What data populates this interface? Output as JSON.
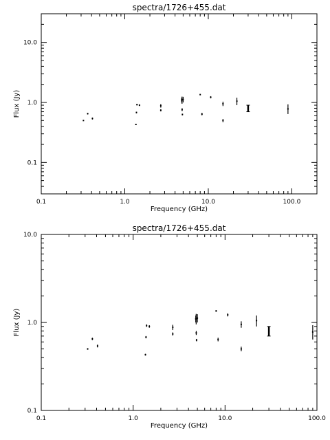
{
  "chart_data": [
    {
      "type": "scatter",
      "title": "spectra/1726+455.dat",
      "xlabel": "Frequency (GHz)",
      "ylabel": "Flux (Jy)",
      "xscale": "log",
      "yscale": "log",
      "xlim": [
        0.1,
        200
      ],
      "ylim": [
        0.03,
        30
      ],
      "xticks": [
        {
          "value": 0.1,
          "label": "0.1"
        },
        {
          "value": 1,
          "label": "1.0"
        },
        {
          "value": 10,
          "label": "10.0"
        },
        {
          "value": 100,
          "label": "100.0"
        }
      ],
      "yticks": [
        {
          "value": 0.1,
          "label": "0.1"
        },
        {
          "value": 1,
          "label": "1.0"
        },
        {
          "value": 10,
          "label": "10.0"
        }
      ],
      "points": [
        {
          "x": 0.32,
          "y": 0.5,
          "lo": 0.49,
          "hi": 0.51
        },
        {
          "x": 0.36,
          "y": 0.65,
          "lo": 0.63,
          "hi": 0.67
        },
        {
          "x": 0.41,
          "y": 0.54,
          "lo": 0.52,
          "hi": 0.56
        },
        {
          "x": 1.36,
          "y": 0.43,
          "lo": 0.42,
          "hi": 0.44
        },
        {
          "x": 1.38,
          "y": 0.68,
          "lo": 0.66,
          "hi": 0.7
        },
        {
          "x": 1.4,
          "y": 0.92,
          "lo": 0.89,
          "hi": 0.95
        },
        {
          "x": 1.5,
          "y": 0.9,
          "lo": 0.87,
          "hi": 0.93
        },
        {
          "x": 2.7,
          "y": 0.74,
          "lo": 0.71,
          "hi": 0.77
        },
        {
          "x": 2.7,
          "y": 0.88,
          "lo": 0.82,
          "hi": 0.94
        },
        {
          "x": 4.8,
          "y": 1.1,
          "lo": 1.0,
          "hi": 1.2
        },
        {
          "x": 4.85,
          "y": 1.1,
          "lo": 0.95,
          "hi": 1.25
        },
        {
          "x": 4.86,
          "y": 0.76,
          "lo": 0.72,
          "hi": 0.8
        },
        {
          "x": 4.9,
          "y": 0.63,
          "lo": 0.61,
          "hi": 0.65
        },
        {
          "x": 5.0,
          "y": 1.12,
          "lo": 1.0,
          "hi": 1.24
        },
        {
          "x": 8.0,
          "y": 1.35,
          "lo": 1.32,
          "hi": 1.38
        },
        {
          "x": 8.4,
          "y": 0.64,
          "lo": 0.61,
          "hi": 0.67
        },
        {
          "x": 10.7,
          "y": 1.22,
          "lo": 1.17,
          "hi": 1.27
        },
        {
          "x": 15.0,
          "y": 0.5,
          "lo": 0.47,
          "hi": 0.53
        },
        {
          "x": 15.0,
          "y": 0.95,
          "lo": 0.87,
          "hi": 1.03
        },
        {
          "x": 22.0,
          "y": 1.05,
          "lo": 0.9,
          "hi": 1.2
        },
        {
          "x": 30.0,
          "y": 0.8,
          "lo": 0.7,
          "hi": 0.9,
          "cap": true
        },
        {
          "x": 90.0,
          "y": 0.78,
          "lo": 0.64,
          "hi": 0.93
        }
      ]
    },
    {
      "type": "scatter",
      "title": "spectra/1726+455.dat",
      "xlabel": "Frequency (GHz)",
      "ylabel": "Flux (Jy)",
      "xscale": "log",
      "yscale": "log",
      "xlim": [
        0.1,
        100
      ],
      "ylim": [
        0.1,
        10
      ],
      "xticks": [
        {
          "value": 0.1,
          "label": "0.1"
        },
        {
          "value": 1,
          "label": "1.0"
        },
        {
          "value": 10,
          "label": "10.0"
        },
        {
          "value": 100,
          "label": "100.0"
        }
      ],
      "yticks": [
        {
          "value": 0.1,
          "label": "0.1"
        },
        {
          "value": 1,
          "label": "1.0"
        },
        {
          "value": 10,
          "label": "10.0"
        }
      ],
      "points": [
        {
          "x": 0.32,
          "y": 0.5,
          "lo": 0.49,
          "hi": 0.51
        },
        {
          "x": 0.36,
          "y": 0.65,
          "lo": 0.63,
          "hi": 0.67
        },
        {
          "x": 0.41,
          "y": 0.54,
          "lo": 0.52,
          "hi": 0.56
        },
        {
          "x": 1.36,
          "y": 0.43,
          "lo": 0.42,
          "hi": 0.44
        },
        {
          "x": 1.38,
          "y": 0.68,
          "lo": 0.66,
          "hi": 0.7
        },
        {
          "x": 1.4,
          "y": 0.92,
          "lo": 0.89,
          "hi": 0.95
        },
        {
          "x": 1.5,
          "y": 0.9,
          "lo": 0.87,
          "hi": 0.93
        },
        {
          "x": 2.7,
          "y": 0.74,
          "lo": 0.71,
          "hi": 0.77
        },
        {
          "x": 2.7,
          "y": 0.88,
          "lo": 0.82,
          "hi": 0.94
        },
        {
          "x": 4.8,
          "y": 1.1,
          "lo": 1.0,
          "hi": 1.2
        },
        {
          "x": 4.85,
          "y": 1.1,
          "lo": 0.95,
          "hi": 1.25
        },
        {
          "x": 4.86,
          "y": 0.76,
          "lo": 0.72,
          "hi": 0.8
        },
        {
          "x": 4.9,
          "y": 0.63,
          "lo": 0.61,
          "hi": 0.65
        },
        {
          "x": 5.0,
          "y": 1.12,
          "lo": 1.0,
          "hi": 1.24
        },
        {
          "x": 8.0,
          "y": 1.35,
          "lo": 1.32,
          "hi": 1.38
        },
        {
          "x": 8.4,
          "y": 0.64,
          "lo": 0.61,
          "hi": 0.67
        },
        {
          "x": 10.7,
          "y": 1.22,
          "lo": 1.17,
          "hi": 1.27
        },
        {
          "x": 15.0,
          "y": 0.5,
          "lo": 0.47,
          "hi": 0.53
        },
        {
          "x": 15.0,
          "y": 0.95,
          "lo": 0.87,
          "hi": 1.03
        },
        {
          "x": 22.0,
          "y": 1.05,
          "lo": 0.9,
          "hi": 1.2
        },
        {
          "x": 30.0,
          "y": 0.8,
          "lo": 0.7,
          "hi": 0.9,
          "cap": true
        },
        {
          "x": 90.0,
          "y": 0.78,
          "lo": 0.64,
          "hi": 0.93
        }
      ]
    }
  ]
}
